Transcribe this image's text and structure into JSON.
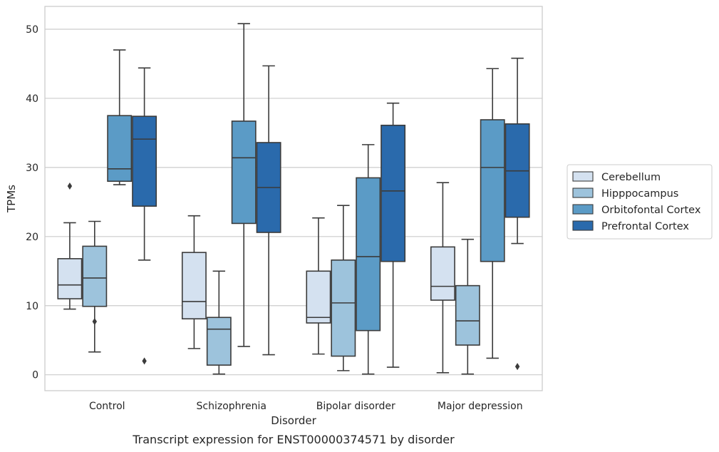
{
  "chart_data": {
    "type": "box",
    "title": "",
    "caption": "Transcript expression for ENST00000374571 by disorder",
    "xlabel": "Disorder",
    "ylabel": "TPMs",
    "ylim": [
      -2.3,
      53.3
    ],
    "yticks": [
      0,
      10,
      20,
      30,
      40,
      50
    ],
    "grid": "horizontal",
    "legend_position": "right",
    "categories": [
      "Control",
      "Schizophrenia",
      "Bipolar disorder",
      "Major depression"
    ],
    "series": [
      {
        "name": "Cerebellum",
        "color": "#d4e1f0",
        "boxes": [
          {
            "min": 9.5,
            "q1": 11.0,
            "median": 13.0,
            "q3": 16.8,
            "max": 22.0,
            "outliers": [
              27.3
            ]
          },
          {
            "min": 3.8,
            "q1": 8.1,
            "median": 10.6,
            "q3": 17.7,
            "max": 23.0,
            "outliers": []
          },
          {
            "min": 3.0,
            "q1": 7.5,
            "median": 8.3,
            "q3": 15.0,
            "max": 22.7,
            "outliers": []
          },
          {
            "min": 0.3,
            "q1": 10.8,
            "median": 12.8,
            "q3": 18.5,
            "max": 27.8,
            "outliers": []
          }
        ]
      },
      {
        "name": "Hipppocampus",
        "color": "#9dc3dc",
        "boxes": [
          {
            "min": 3.3,
            "q1": 9.9,
            "median": 14.0,
            "q3": 18.6,
            "max": 22.2,
            "outliers": [
              7.7
            ]
          },
          {
            "min": 0.1,
            "q1": 1.4,
            "median": 6.6,
            "q3": 8.3,
            "max": 15.0,
            "outliers": []
          },
          {
            "min": 0.6,
            "q1": 2.7,
            "median": 10.4,
            "q3": 16.6,
            "max": 24.5,
            "outliers": []
          },
          {
            "min": 0.1,
            "q1": 4.3,
            "median": 7.8,
            "q3": 12.9,
            "max": 19.6,
            "outliers": []
          }
        ]
      },
      {
        "name": "Orbitofontal Cortex",
        "color": "#5b9bc6",
        "boxes": [
          {
            "min": 27.5,
            "q1": 28.0,
            "median": 29.8,
            "q3": 37.5,
            "max": 47.0,
            "outliers": []
          },
          {
            "min": 4.1,
            "q1": 21.9,
            "median": 31.4,
            "q3": 36.7,
            "max": 50.8,
            "outliers": []
          },
          {
            "min": 0.1,
            "q1": 6.4,
            "median": 17.1,
            "q3": 28.5,
            "max": 33.3,
            "outliers": []
          },
          {
            "min": 2.4,
            "q1": 16.4,
            "median": 30.0,
            "q3": 36.9,
            "max": 44.3,
            "outliers": []
          }
        ]
      },
      {
        "name": "Prefrontal Cortex",
        "color": "#2a6aac",
        "boxes": [
          {
            "min": 16.6,
            "q1": 24.4,
            "median": 34.1,
            "q3": 37.4,
            "max": 44.4,
            "outliers": [
              2.0
            ]
          },
          {
            "min": 2.9,
            "q1": 20.6,
            "median": 27.1,
            "q3": 33.6,
            "max": 44.7,
            "outliers": []
          },
          {
            "min": 1.1,
            "q1": 16.4,
            "median": 26.6,
            "q3": 36.1,
            "max": 39.3,
            "outliers": []
          },
          {
            "min": 19.0,
            "q1": 22.8,
            "median": 29.5,
            "q3": 36.3,
            "max": 45.8,
            "outliers": [
              1.2
            ]
          }
        ]
      }
    ]
  }
}
